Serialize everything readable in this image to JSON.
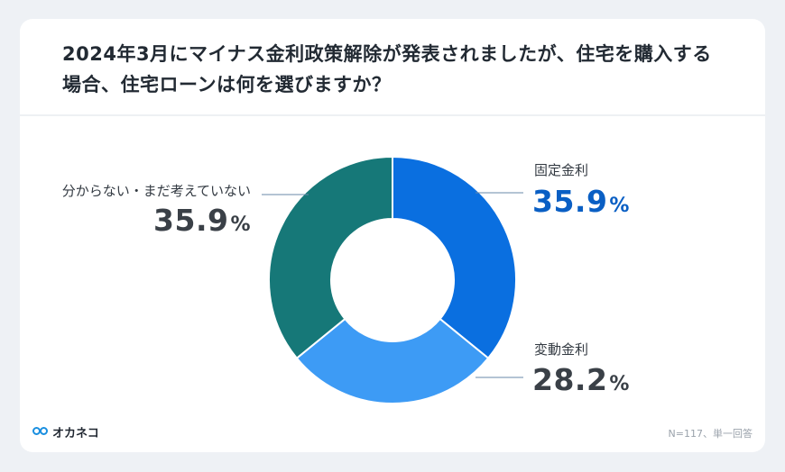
{
  "title": {
    "line1": "2024年3月にマイナス金利政策解除が発表されましたが、住宅を購入する",
    "line2": "場合、住宅ローンは何を選びますか？"
  },
  "chart_data": {
    "type": "pie",
    "donut": true,
    "slices": [
      {
        "label": "固定金利",
        "value": 35.9,
        "display": "35.9",
        "color": "#0a6fe0",
        "value_color": "#0a5fc4"
      },
      {
        "label": "変動金利",
        "value": 28.2,
        "display": "28.2",
        "color": "#3d9bf5",
        "value_color": "#3a4047"
      },
      {
        "label": "分からない・まだ考えていない",
        "value": 35.9,
        "display": "35.9",
        "color": "#167878",
        "value_color": "#3a4047"
      }
    ],
    "unit": "%"
  },
  "footer": {
    "brand": "オカネコ",
    "note": "N=117、単一回答"
  }
}
